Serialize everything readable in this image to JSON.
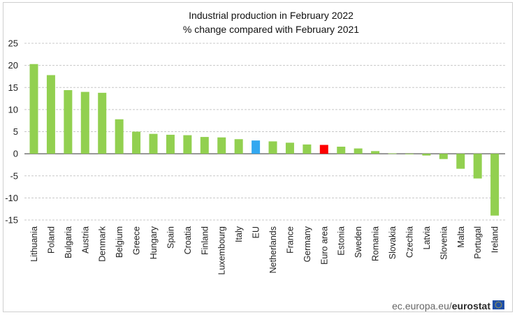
{
  "chart_data": {
    "type": "bar",
    "title": "Industrial production in February 2022",
    "subtitle": "% change compared with February 2021",
    "ylim": [
      -15,
      25
    ],
    "yticks": [
      25,
      20,
      15,
      10,
      5,
      0,
      -5,
      -10,
      -15
    ],
    "grid": true,
    "categories": [
      "Lithuania",
      "Poland",
      "Bulgaria",
      "Austria",
      "Denmark",
      "Belgium",
      "Greece",
      "Hungary",
      "Spain",
      "Croatia",
      "Finland",
      "Luxembourg",
      "Italy",
      "EU",
      "Netherlands",
      "France",
      "Germany",
      "Euro area",
      "Estonia",
      "Sweden",
      "Romania",
      "Slovakia",
      "Czechia",
      "Latvia",
      "Slovenia",
      "Malta",
      "Portugal",
      "Ireland"
    ],
    "values": [
      20.3,
      17.8,
      14.4,
      14.0,
      13.8,
      7.8,
      5.0,
      4.5,
      4.3,
      4.2,
      3.8,
      3.7,
      3.3,
      3.0,
      2.8,
      2.5,
      2.1,
      2.0,
      1.6,
      1.2,
      0.6,
      0.1,
      -0.1,
      -0.4,
      -1.2,
      -3.4,
      -5.6,
      -14.0
    ],
    "colors": {
      "default": "#92d050",
      "EU": "#33a8f0",
      "Euro area": "#ff0000"
    }
  },
  "footer": {
    "source": "ec.europa.eu/",
    "brand": "eurostat"
  },
  "flag_colors": {
    "blue": "#1f4fa8",
    "star": "#ffd200"
  }
}
